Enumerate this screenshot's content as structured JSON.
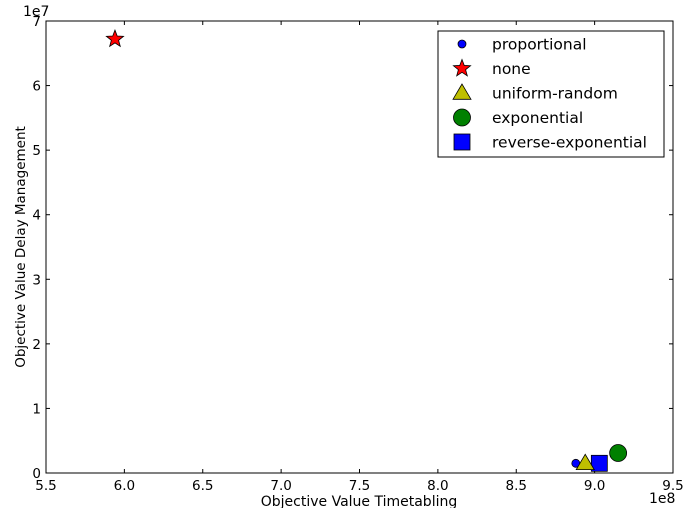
{
  "chart_data": {
    "type": "scatter",
    "xlabel": "Objective Value Timetabling",
    "ylabel": "Objective Value Delay Management",
    "x_multiplier_label": "1e8",
    "y_multiplier_label": "1e7",
    "xlim": [
      5.5,
      9.5
    ],
    "ylim": [
      0,
      7
    ],
    "x_ticks": [
      "5.5",
      "6.0",
      "6.5",
      "7.0",
      "7.5",
      "8.0",
      "8.5",
      "9.0",
      "9.5"
    ],
    "y_ticks": [
      "0",
      "1",
      "2",
      "3",
      "4",
      "5",
      "6",
      "7"
    ],
    "grid": false,
    "legend_position": "top-right",
    "series": [
      {
        "name": "proportional",
        "marker": "circle-small",
        "color": "#0000ff",
        "x": [
          8.88
        ],
        "y": [
          0.15
        ]
      },
      {
        "name": "none",
        "marker": "star",
        "color": "#ff0000",
        "x": [
          5.94
        ],
        "y": [
          6.72
        ]
      },
      {
        "name": "uniform-random",
        "marker": "triangle",
        "color": "#bfbf00",
        "x": [
          8.94
        ],
        "y": [
          0.15
        ]
      },
      {
        "name": "exponential",
        "marker": "circle-large",
        "color": "#008000",
        "x": [
          9.15
        ],
        "y": [
          0.31
        ]
      },
      {
        "name": "reverse-exponential",
        "marker": "square",
        "color": "#0000ff",
        "x": [
          9.03
        ],
        "y": [
          0.15
        ]
      }
    ]
  }
}
